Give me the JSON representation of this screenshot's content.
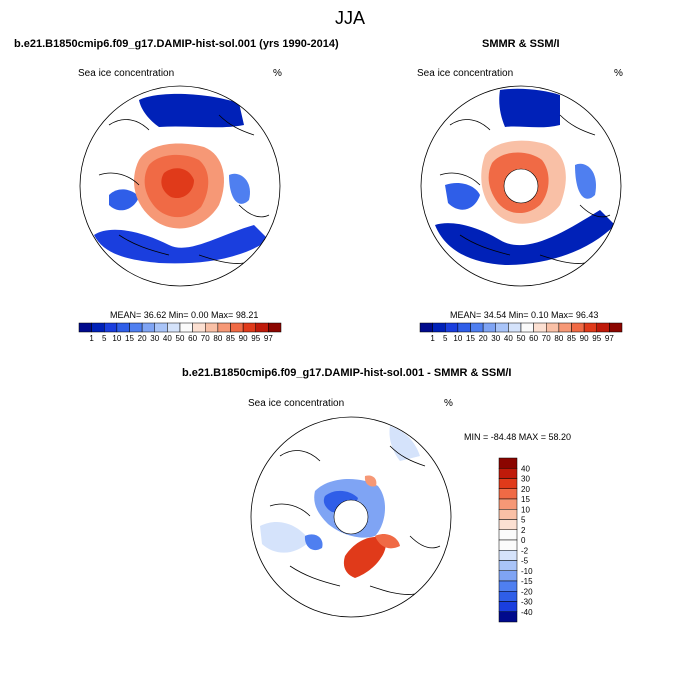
{
  "season": "JJA",
  "panels": [
    {
      "title": "b.e21.B1850cmip6.f09_g17.DAMIP-hist-sol.001 (yrs 1990-2014)",
      "field_label": "Sea ice concentration",
      "units": "%",
      "stats": "MEAN=  36.62  Min=   0.00  Max=  98.21",
      "colorbar": {
        "ticks": [
          "1",
          "5",
          "10",
          "15",
          "20",
          "30",
          "40",
          "50",
          "60",
          "70",
          "80",
          "85",
          "90",
          "95",
          "97"
        ],
        "colors": [
          "#000a8c",
          "#0021b8",
          "#1a3ede",
          "#2f5ee8",
          "#4f7ff0",
          "#7fa4f4",
          "#a9c4f8",
          "#d5e3fb",
          "#fbfbfb",
          "#fce0d2",
          "#f9c0a6",
          "#f69876",
          "#f06a45",
          "#e03a1a",
          "#bf1a0a",
          "#8b0500"
        ]
      }
    },
    {
      "title": "SMMR & SSM/I",
      "field_label": "Sea ice concentration",
      "units": "%",
      "stats": "MEAN=  34.54  Min=   0.10  Max=  96.43",
      "colorbar": {
        "ticks": [
          "1",
          "5",
          "10",
          "15",
          "20",
          "30",
          "40",
          "50",
          "60",
          "70",
          "80",
          "85",
          "90",
          "95",
          "97"
        ],
        "colors": [
          "#000a8c",
          "#0021b8",
          "#1a3ede",
          "#2f5ee8",
          "#4f7ff0",
          "#7fa4f4",
          "#a9c4f8",
          "#d5e3fb",
          "#fbfbfb",
          "#fce0d2",
          "#f9c0a6",
          "#f69876",
          "#f06a45",
          "#e03a1a",
          "#bf1a0a",
          "#8b0500"
        ]
      }
    },
    {
      "title": "b.e21.B1850cmip6.f09_g17.DAMIP-hist-sol.001 - SMMR & SSM/I",
      "field_label": "Sea ice concentration",
      "units": "%",
      "stats": "MIN = -84.48 MAX =  58.20",
      "colorbar": {
        "ticks": [
          "40",
          "30",
          "20",
          "15",
          "10",
          "5",
          "2",
          "0",
          "-2",
          "-5",
          "-10",
          "-15",
          "-20",
          "-30",
          "-40"
        ],
        "colors": [
          "#8b0500",
          "#bf1a0a",
          "#e03a1a",
          "#f06a45",
          "#f69876",
          "#f9c0a6",
          "#fce0d2",
          "#fbfbfb",
          "#fbfbfb",
          "#d5e3fb",
          "#a9c4f8",
          "#7fa4f4",
          "#4f7ff0",
          "#2f5ee8",
          "#1a3ede",
          "#000a8c"
        ]
      }
    }
  ]
}
